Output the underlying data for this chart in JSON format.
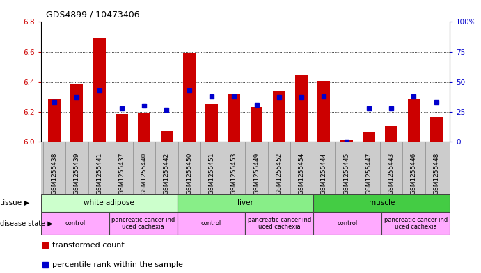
{
  "title": "GDS4899 / 10473406",
  "samples": [
    "GSM1255438",
    "GSM1255439",
    "GSM1255441",
    "GSM1255437",
    "GSM1255440",
    "GSM1255442",
    "GSM1255450",
    "GSM1255451",
    "GSM1255453",
    "GSM1255449",
    "GSM1255452",
    "GSM1255454",
    "GSM1255444",
    "GSM1255445",
    "GSM1255447",
    "GSM1255443",
    "GSM1255446",
    "GSM1255448"
  ],
  "transformed_count": [
    6.285,
    6.385,
    6.695,
    6.185,
    6.195,
    6.07,
    6.595,
    6.255,
    6.315,
    6.235,
    6.34,
    6.445,
    6.405,
    6.01,
    6.065,
    6.105,
    6.285,
    6.165
  ],
  "percentile_rank": [
    33,
    37,
    43,
    28,
    30,
    27,
    43,
    38,
    38,
    31,
    37,
    37,
    38,
    0,
    28,
    28,
    38,
    33
  ],
  "ylim_left": [
    6.0,
    6.8
  ],
  "ylim_right": [
    0,
    100
  ],
  "yticks_left": [
    6.0,
    6.2,
    6.4,
    6.6,
    6.8
  ],
  "yticks_right": [
    0,
    25,
    50,
    75,
    100
  ],
  "bar_color": "#cc0000",
  "dot_color": "#0000cc",
  "tissue_groups": [
    {
      "label": "white adipose",
      "start": 0,
      "end": 6
    },
    {
      "label": "liver",
      "start": 6,
      "end": 12
    },
    {
      "label": "muscle",
      "start": 12,
      "end": 18
    }
  ],
  "tissue_colors": [
    "#ccffcc",
    "#88ee88",
    "#44cc44"
  ],
  "disease_groups": [
    {
      "label": "control",
      "start": 0,
      "end": 3
    },
    {
      "label": "pancreatic cancer-ind\nuced cachexia",
      "start": 3,
      "end": 6
    },
    {
      "label": "control",
      "start": 6,
      "end": 9
    },
    {
      "label": "pancreatic cancer-ind\nuced cachexia",
      "start": 9,
      "end": 12
    },
    {
      "label": "control",
      "start": 12,
      "end": 15
    },
    {
      "label": "pancreatic cancer-ind\nuced cachexia",
      "start": 15,
      "end": 18
    }
  ],
  "disease_color": "#ffaaff",
  "sample_label_bg": "#cccccc",
  "grid_style": "dotted",
  "bar_width": 0.55,
  "figsize": [
    6.91,
    3.93
  ],
  "dpi": 100
}
